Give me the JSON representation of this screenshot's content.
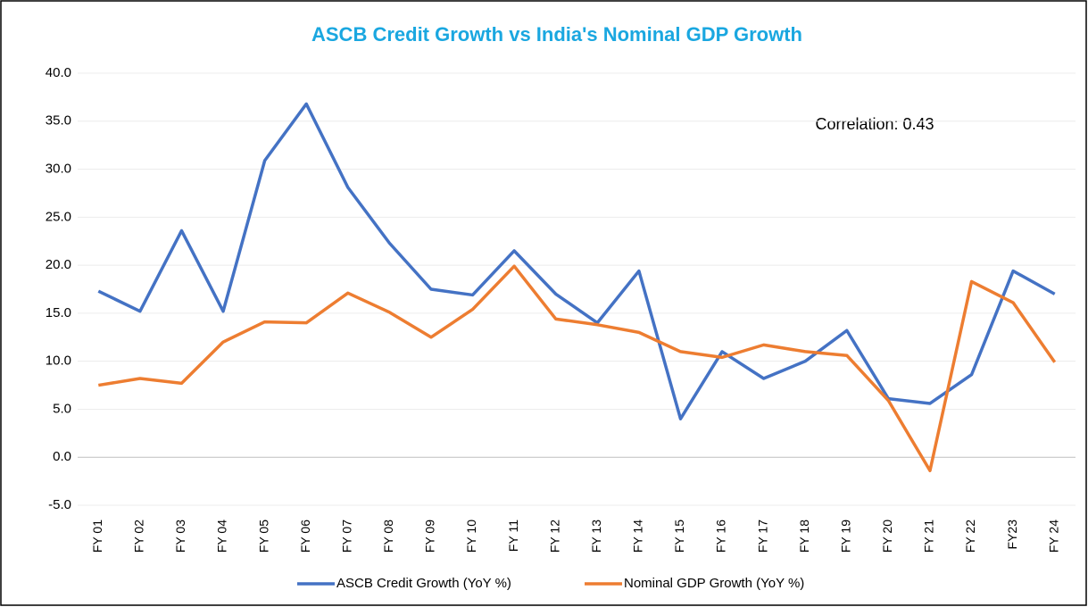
{
  "chart_data": {
    "type": "line",
    "title": "ASCB Credit Growth vs India's Nominal GDP Growth",
    "annotation": "Correlation: 0.43",
    "categories": [
      "FY 01",
      "FY 02",
      "FY 03",
      "FY 04",
      "FY 05",
      "FY 06",
      "FY 07",
      "FY 08",
      "FY 09",
      "FY 10",
      "FY 11",
      "FY 12",
      "FY 13",
      "FY 14",
      "FY 15",
      "FY 16",
      "FY 17",
      "FY 18",
      "FY 19",
      "FY 20",
      "FY 21",
      "FY 22",
      "FY23",
      "FY 24"
    ],
    "series": [
      {
        "name": "ASCB Credit Growth (YoY %)",
        "color": "#4472c4",
        "values": [
          17.3,
          15.2,
          23.6,
          15.2,
          30.9,
          36.8,
          28.1,
          22.3,
          17.5,
          16.9,
          21.5,
          17.0,
          14.0,
          19.4,
          4.0,
          11.0,
          8.2,
          10.0,
          13.2,
          6.1,
          5.6,
          8.6,
          19.4,
          17.0
        ]
      },
      {
        "name": "Nominal GDP Growth (YoY %)",
        "color": "#ed7d31",
        "values": [
          7.5,
          8.2,
          7.7,
          12.0,
          14.1,
          14.0,
          17.1,
          15.1,
          12.5,
          15.4,
          19.9,
          14.4,
          13.8,
          13.0,
          11.0,
          10.4,
          11.7,
          11.0,
          10.6,
          5.9,
          -1.4,
          18.3,
          16.1,
          9.9
        ]
      }
    ],
    "ylim": [
      -5,
      40
    ],
    "yticks": [
      {
        "value": -5,
        "label": "-5.0"
      },
      {
        "value": 0,
        "label": "0.0"
      },
      {
        "value": 5,
        "label": "5.0"
      },
      {
        "value": 10,
        "label": "10.0"
      },
      {
        "value": 15,
        "label": "15.0"
      },
      {
        "value": 20,
        "label": "20.0"
      },
      {
        "value": 25,
        "label": "25.0"
      },
      {
        "value": 30,
        "label": "30.0"
      },
      {
        "value": 35,
        "label": "35.0"
      },
      {
        "value": 40,
        "label": "40.0"
      }
    ],
    "grid": true,
    "legend": "bottom"
  }
}
